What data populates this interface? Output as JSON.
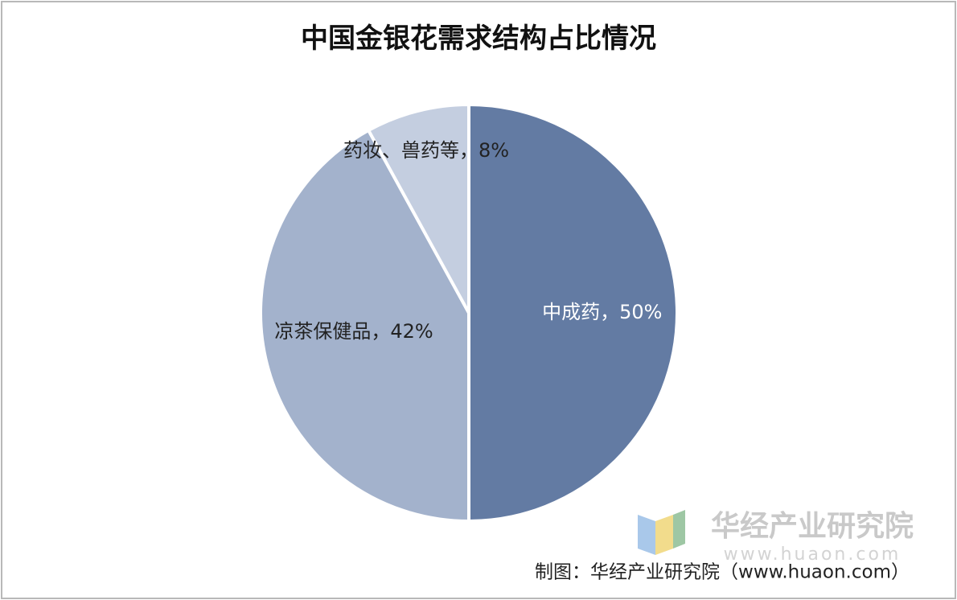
{
  "chart_data": {
    "type": "pie",
    "title": "中国金银花需求结构占比情况",
    "values": [
      50,
      42,
      8
    ],
    "value_labels": [
      "中成药，50%",
      "凉茶保健品，42%",
      "药妆、兽药等，8%"
    ],
    "colors": [
      "#637ba3",
      "#a3b2cc",
      "#c4cee0"
    ],
    "label_colors": [
      "#ffffff",
      "#222222",
      "#222222"
    ],
    "watermark": "华经产业研究院",
    "watermark_url": "www.huaon.com",
    "source": "制图：华经产业研究院（www.huaon.com）"
  }
}
